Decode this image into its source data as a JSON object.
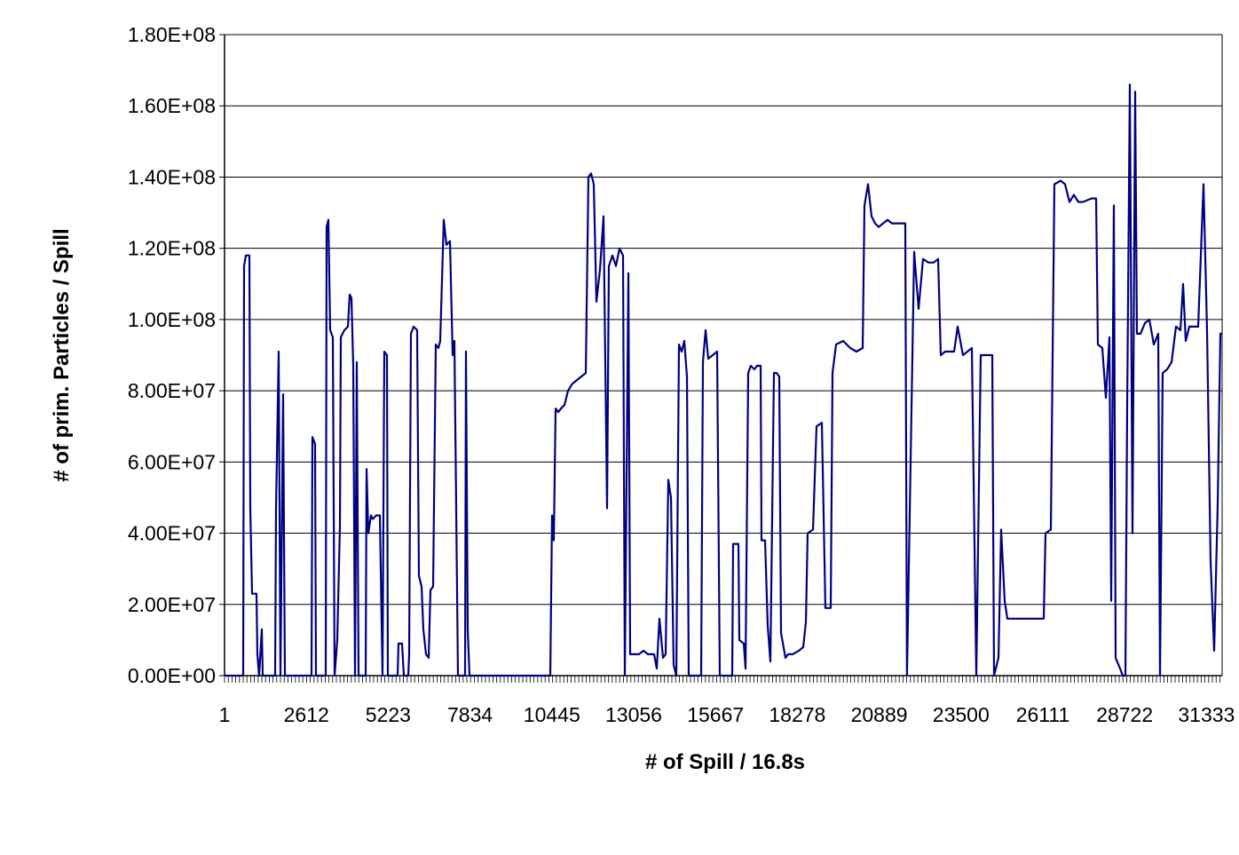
{
  "chart_data": {
    "type": "line",
    "title": "",
    "xlabel": "# of Spill / 16.8s",
    "ylabel": "# of prim. Particles / Spill",
    "xlim": [
      1,
      31832
    ],
    "ylim": [
      0,
      180000000
    ],
    "grid": true,
    "legend": "none",
    "line_color": "#000080",
    "x_tick_labels": [
      "1",
      "2612",
      "5223",
      "7834",
      "10445",
      "13056",
      "15667",
      "18278",
      "20889",
      "23500",
      "26111",
      "28722",
      "31333"
    ],
    "x_tick_values": [
      1,
      2612,
      5223,
      7834,
      10445,
      13056,
      15667,
      18278,
      20889,
      23500,
      26111,
      28722,
      31333
    ],
    "y_tick_labels": [
      "0.00E+00",
      "2.00E+07",
      "4.00E+07",
      "6.00E+07",
      "8.00E+07",
      "1.00E+08",
      "1.20E+08",
      "1.40E+08",
      "1.60E+08",
      "1.80E+08"
    ],
    "y_tick_values": [
      0,
      20000000,
      40000000,
      60000000,
      80000000,
      100000000,
      120000000,
      140000000,
      160000000,
      180000000
    ],
    "series": [
      {
        "points": [
          [
            1,
            0
          ],
          [
            595,
            0
          ],
          [
            623,
            115000000.0
          ],
          [
            680,
            118000000.0
          ],
          [
            793,
            118000000.0
          ],
          [
            821,
            47000000.0
          ],
          [
            878,
            23000000.0
          ],
          [
            1020,
            23000000.0
          ],
          [
            1048,
            6000000.0
          ],
          [
            1104,
            0
          ],
          [
            1189,
            13000000.0
          ],
          [
            1218,
            0
          ],
          [
            1614,
            0
          ],
          [
            1643,
            47000000.0
          ],
          [
            1728,
            91000000.0
          ],
          [
            1784,
            0
          ],
          [
            1869,
            79000000.0
          ],
          [
            1926,
            0
          ],
          [
            2775,
            0
          ],
          [
            2804,
            67000000.0
          ],
          [
            2889,
            65000000.0
          ],
          [
            2917,
            0
          ],
          [
            3228,
            0
          ],
          [
            3257,
            126000000.0
          ],
          [
            3313,
            128000000.0
          ],
          [
            3370,
            97000000.0
          ],
          [
            3455,
            95000000.0
          ],
          [
            3512,
            0
          ],
          [
            3597,
            10000000.0
          ],
          [
            3682,
            42000000.0
          ],
          [
            3710,
            95000000.0
          ],
          [
            3823,
            97000000.0
          ],
          [
            3937,
            98000000.0
          ],
          [
            3993,
            107000000.0
          ],
          [
            4050,
            106000000.0
          ],
          [
            4106,
            87000000.0
          ],
          [
            4163,
            0
          ],
          [
            4220,
            88000000.0
          ],
          [
            4276,
            0
          ],
          [
            4503,
            0
          ],
          [
            4531,
            58000000.0
          ],
          [
            4588,
            40000000.0
          ],
          [
            4673,
            45000000.0
          ],
          [
            4730,
            44000000.0
          ],
          [
            4843,
            45000000.0
          ],
          [
            4956,
            45000000.0
          ],
          [
            5041,
            0
          ],
          [
            5098,
            91000000.0
          ],
          [
            5183,
            90000000.0
          ],
          [
            5211,
            0
          ],
          [
            5522,
            0
          ],
          [
            5551,
            9000000.0
          ],
          [
            5664,
            9000000.0
          ],
          [
            5721,
            0
          ],
          [
            5862,
            0
          ],
          [
            5891,
            6000000.0
          ],
          [
            5947,
            96000000.0
          ],
          [
            6032,
            98000000.0
          ],
          [
            6145,
            97000000.0
          ],
          [
            6202,
            28000000.0
          ],
          [
            6287,
            25000000.0
          ],
          [
            6344,
            13000000.0
          ],
          [
            6429,
            6000000.0
          ],
          [
            6514,
            5000000.0
          ],
          [
            6570,
            24000000.0
          ],
          [
            6655,
            25000000.0
          ],
          [
            6740,
            93000000.0
          ],
          [
            6825,
            92000000.0
          ],
          [
            6882,
            94000000.0
          ],
          [
            6995,
            128000000.0
          ],
          [
            7080,
            121000000.0
          ],
          [
            7193,
            122000000.0
          ],
          [
            7278,
            90000000.0
          ],
          [
            7335,
            94000000.0
          ],
          [
            7448,
            0
          ],
          [
            7675,
            0
          ],
          [
            7703,
            91000000.0
          ],
          [
            7760,
            13000000.0
          ],
          [
            7816,
            0
          ],
          [
            10393,
            0
          ],
          [
            10450,
            45000000.0
          ],
          [
            10507,
            38000000.0
          ],
          [
            10564,
            75000000.0
          ],
          [
            10648,
            74000000.0
          ],
          [
            10733,
            75000000.0
          ],
          [
            10847,
            76000000.0
          ],
          [
            10960,
            80000000.0
          ],
          [
            11101,
            82000000.0
          ],
          [
            11243,
            83000000.0
          ],
          [
            11385,
            84000000.0
          ],
          [
            11526,
            85000000.0
          ],
          [
            11611,
            140000000.0
          ],
          [
            11696,
            141000000.0
          ],
          [
            11781,
            138000000.0
          ],
          [
            11866,
            105000000.0
          ],
          [
            11979,
            114000000.0
          ],
          [
            12093,
            129000000.0
          ],
          [
            12206,
            47000000.0
          ],
          [
            12262,
            115000000.0
          ],
          [
            12376,
            118000000.0
          ],
          [
            12489,
            115000000.0
          ],
          [
            12602,
            120000000.0
          ],
          [
            12716,
            118000000.0
          ],
          [
            12772,
            0
          ],
          [
            12886,
            113000000.0
          ],
          [
            12942,
            6000000.0
          ],
          [
            13225,
            6000000.0
          ],
          [
            13367,
            7000000.0
          ],
          [
            13509,
            6000000.0
          ],
          [
            13707,
            6000000.0
          ],
          [
            13792,
            2000000.0
          ],
          [
            13877,
            16000000.0
          ],
          [
            13990,
            5000000.0
          ],
          [
            14075,
            6000000.0
          ],
          [
            14160,
            55000000.0
          ],
          [
            14245,
            50000000.0
          ],
          [
            14330,
            3000000.0
          ],
          [
            14415,
            0
          ],
          [
            14500,
            93000000.0
          ],
          [
            14585,
            91000000.0
          ],
          [
            14670,
            94000000.0
          ],
          [
            14755,
            84000000.0
          ],
          [
            14811,
            0
          ],
          [
            15208,
            0
          ],
          [
            15264,
            88000000.0
          ],
          [
            15349,
            97000000.0
          ],
          [
            15434,
            89000000.0
          ],
          [
            15576,
            90000000.0
          ],
          [
            15718,
            91000000.0
          ],
          [
            15802,
            0
          ],
          [
            16199,
            0
          ],
          [
            16227,
            37000000.0
          ],
          [
            16397,
            37000000.0
          ],
          [
            16426,
            10000000.0
          ],
          [
            16567,
            9000000.0
          ],
          [
            16624,
            2000000.0
          ],
          [
            16709,
            85000000.0
          ],
          [
            16794,
            87000000.0
          ],
          [
            16907,
            86000000.0
          ],
          [
            16992,
            87000000.0
          ],
          [
            17105,
            87000000.0
          ],
          [
            17134,
            38000000.0
          ],
          [
            17247,
            38000000.0
          ],
          [
            17332,
            14000000.0
          ],
          [
            17417,
            4000000.0
          ],
          [
            17530,
            85000000.0
          ],
          [
            17615,
            85000000.0
          ],
          [
            17700,
            84000000.0
          ],
          [
            17757,
            12000000.0
          ],
          [
            17898,
            5000000.0
          ],
          [
            17983,
            6000000.0
          ],
          [
            18125,
            6000000.0
          ],
          [
            18323,
            7000000.0
          ],
          [
            18464,
            8000000.0
          ],
          [
            18550,
            15000000.0
          ],
          [
            18606,
            40000000.0
          ],
          [
            18776,
            41000000.0
          ],
          [
            18889,
            70000000.0
          ],
          [
            19059,
            71000000.0
          ],
          [
            19172,
            19000000.0
          ],
          [
            19342,
            19000000.0
          ],
          [
            19399,
            85000000.0
          ],
          [
            19512,
            93000000.0
          ],
          [
            19739,
            94000000.0
          ],
          [
            19966,
            92000000.0
          ],
          [
            20164,
            91000000.0
          ],
          [
            20362,
            92000000.0
          ],
          [
            20419,
            132000000.0
          ],
          [
            20532,
            138000000.0
          ],
          [
            20645,
            129000000.0
          ],
          [
            20758,
            127000000.0
          ],
          [
            20871,
            126000000.0
          ],
          [
            21013,
            127000000.0
          ],
          [
            21155,
            128000000.0
          ],
          [
            21296,
            127000000.0
          ],
          [
            21494,
            127000000.0
          ],
          [
            21721,
            127000000.0
          ],
          [
            21777,
            0
          ],
          [
            22004,
            119000000.0
          ],
          [
            22146,
            103000000.0
          ],
          [
            22288,
            117000000.0
          ],
          [
            22458,
            116000000.0
          ],
          [
            22627,
            116000000.0
          ],
          [
            22769,
            117000000.0
          ],
          [
            22854,
            90000000.0
          ],
          [
            22996,
            91000000.0
          ],
          [
            23279,
            91000000.0
          ],
          [
            23392,
            98000000.0
          ],
          [
            23562,
            90000000.0
          ],
          [
            23704,
            91000000.0
          ],
          [
            23845,
            92000000.0
          ],
          [
            23987,
            0
          ],
          [
            24128,
            90000000.0
          ],
          [
            24270,
            90000000.0
          ],
          [
            24497,
            90000000.0
          ],
          [
            24553,
            0
          ],
          [
            24695,
            5000000.0
          ],
          [
            24780,
            41000000.0
          ],
          [
            24893,
            21000000.0
          ],
          [
            24978,
            16000000.0
          ],
          [
            25120,
            16000000.0
          ],
          [
            25403,
            16000000.0
          ],
          [
            25686,
            16000000.0
          ],
          [
            25969,
            16000000.0
          ],
          [
            26139,
            16000000.0
          ],
          [
            26196,
            40000000.0
          ],
          [
            26366,
            41000000.0
          ],
          [
            26479,
            138000000.0
          ],
          [
            26677,
            139000000.0
          ],
          [
            26819,
            138000000.0
          ],
          [
            26961,
            133000000.0
          ],
          [
            27103,
            135000000.0
          ],
          [
            27244,
            133000000.0
          ],
          [
            27386,
            133000000.0
          ],
          [
            27669,
            134000000.0
          ],
          [
            27811,
            134000000.0
          ],
          [
            27867,
            93000000.0
          ],
          [
            28009,
            92000000.0
          ],
          [
            28123,
            78000000.0
          ],
          [
            28236,
            95000000.0
          ],
          [
            28292,
            21000000.0
          ],
          [
            28377,
            132000000.0
          ],
          [
            28433,
            5000000.0
          ],
          [
            28575,
            2000000.0
          ],
          [
            28660,
            0
          ],
          [
            28745,
            0
          ],
          [
            28801,
            75000000.0
          ],
          [
            28886,
            166000000.0
          ],
          [
            28971,
            40000000.0
          ],
          [
            29056,
            164000000.0
          ],
          [
            29113,
            96000000.0
          ],
          [
            29226,
            96000000.0
          ],
          [
            29368,
            99000000.0
          ],
          [
            29509,
            100000000.0
          ],
          [
            29651,
            93000000.0
          ],
          [
            29793,
            96000000.0
          ],
          [
            29849,
            0
          ],
          [
            29934,
            85000000.0
          ],
          [
            30076,
            86000000.0
          ],
          [
            30217,
            88000000.0
          ],
          [
            30359,
            98000000.0
          ],
          [
            30501,
            97000000.0
          ],
          [
            30586,
            110000000.0
          ],
          [
            30671,
            94000000.0
          ],
          [
            30784,
            98000000.0
          ],
          [
            30926,
            98000000.0
          ],
          [
            31067,
            98000000.0
          ],
          [
            31237,
            138000000.0
          ],
          [
            31350,
            97000000.0
          ],
          [
            31464,
            32000000.0
          ],
          [
            31577,
            7000000.0
          ],
          [
            31690,
            48000000.0
          ],
          [
            31775,
            96000000.0
          ],
          [
            31832,
            96000000.0
          ]
        ]
      }
    ]
  }
}
